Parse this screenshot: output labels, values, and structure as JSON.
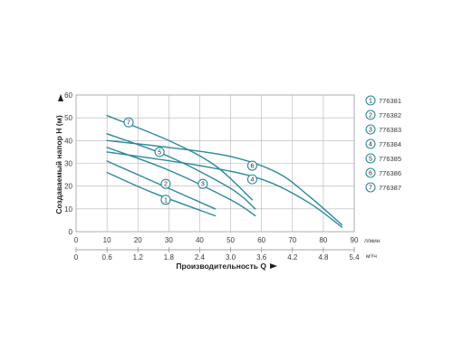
{
  "chart_data": {
    "type": "line",
    "ylabel": "Создаваемый напор H (м)",
    "xlabel": "Производительность Q",
    "x_unit_primary": "л/мин",
    "x_unit_secondary": "м³/ч",
    "xlim": [
      0,
      90
    ],
    "ylim": [
      0,
      60
    ],
    "y_ticks": [
      "0",
      "10",
      "20",
      "30",
      "40",
      "50",
      "60"
    ],
    "x_ticks_primary": [
      "0",
      "10",
      "20",
      "30",
      "40",
      "50",
      "60",
      "70",
      "80",
      "90"
    ],
    "x_ticks_secondary": [
      "0",
      "0.6",
      "1.2",
      "1.8",
      "2.4",
      "3.0",
      "3.6",
      "4.2",
      "4.8",
      "5.4"
    ],
    "grid": true,
    "legend_position": "right",
    "line_color": "#2a8a99",
    "series": [
      {
        "marker": "1",
        "name": "776381",
        "x": [
          10,
          25,
          45
        ],
        "y": [
          26,
          17,
          7
        ],
        "label_at": [
          29,
          14
        ]
      },
      {
        "marker": "2",
        "name": "776382",
        "x": [
          10,
          25,
          45
        ],
        "y": [
          31,
          22,
          10
        ],
        "label_at": [
          29,
          21
        ]
      },
      {
        "marker": "3",
        "name": "776383",
        "x": [
          10,
          30,
          50,
          58
        ],
        "y": [
          37,
          27,
          14,
          7
        ],
        "label_at": [
          41,
          21
        ]
      },
      {
        "marker": "4",
        "name": "776384",
        "x": [
          10,
          40,
          60,
          75,
          86
        ],
        "y": [
          35,
          29,
          23,
          13,
          2
        ],
        "label_at": [
          57,
          23
        ]
      },
      {
        "marker": "5",
        "name": "776385",
        "x": [
          10,
          30,
          50,
          58
        ],
        "y": [
          43,
          33,
          19,
          10
        ],
        "label_at": [
          27,
          35
        ]
      },
      {
        "marker": "6",
        "name": "776386",
        "x": [
          10,
          30,
          50,
          65,
          75,
          86
        ],
        "y": [
          40,
          37,
          33,
          26,
          16,
          3
        ],
        "label_at": [
          57,
          29
        ]
      },
      {
        "marker": "7",
        "name": "776387",
        "x": [
          10,
          30,
          45,
          57
        ],
        "y": [
          51,
          40,
          29,
          14
        ],
        "label_at": [
          17,
          48
        ]
      }
    ]
  }
}
